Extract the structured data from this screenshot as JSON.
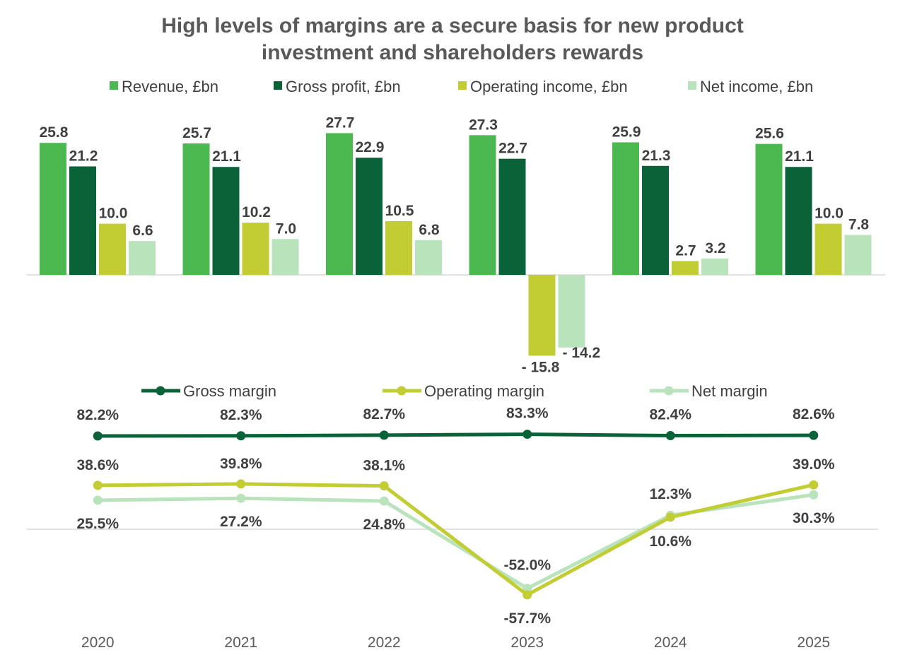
{
  "title": {
    "line1": "High levels of margins are a secure basis for new product",
    "line2": "investment and shareholders rewards"
  },
  "chart_data": [
    {
      "type": "bar",
      "categories": [
        "2020",
        "2021",
        "2022",
        "2023",
        "2024",
        "2025"
      ],
      "series": [
        {
          "name": "Revenue, £bn",
          "color": "#4cb850",
          "values": [
            25.8,
            25.7,
            27.7,
            27.3,
            25.9,
            25.6
          ],
          "labels": [
            "25.8",
            "25.7",
            "27.7",
            "27.3",
            "25.9",
            "25.6"
          ]
        },
        {
          "name": "Gross profit, £bn",
          "color": "#0a6239",
          "values": [
            21.2,
            21.1,
            22.9,
            22.7,
            21.3,
            21.1
          ],
          "labels": [
            "21.2",
            "21.1",
            "22.9",
            "22.7",
            "21.3",
            "21.1"
          ]
        },
        {
          "name": "Operating income, £bn",
          "color": "#c2cd34",
          "values": [
            10.0,
            10.2,
            10.5,
            -15.8,
            2.7,
            10.0
          ],
          "labels": [
            "10.0",
            "10.2",
            "10.5",
            "- 15.8",
            "2.7",
            "10.0"
          ]
        },
        {
          "name": "Net income, £bn",
          "color": "#b8e3bb",
          "values": [
            6.6,
            7.0,
            6.8,
            -14.2,
            3.2,
            7.8
          ],
          "labels": [
            "6.6",
            "7.0",
            "6.8",
            "- 14.2",
            "3.2",
            "7.8"
          ]
        }
      ],
      "legend": "top"
    },
    {
      "type": "line",
      "categories": [
        "2020",
        "2021",
        "2022",
        "2023",
        "2024",
        "2025"
      ],
      "series": [
        {
          "name": "Gross margin",
          "color": "#0a6239",
          "values": [
            82.2,
            82.3,
            82.7,
            83.3,
            82.4,
            82.6
          ],
          "labels": [
            "82.2%",
            "82.3%",
            "82.7%",
            "83.3%",
            "82.4%",
            "82.6%"
          ]
        },
        {
          "name": "Operating margin",
          "color": "#c2cd34",
          "values": [
            38.6,
            39.8,
            38.1,
            -57.7,
            10.6,
            39.0
          ],
          "labels": [
            "38.6%",
            "39.8%",
            "38.1%",
            "-57.7%",
            "10.6%",
            "39.0%"
          ]
        },
        {
          "name": "Net margin",
          "color": "#b8e3bb",
          "values": [
            25.5,
            27.2,
            24.8,
            -52.0,
            12.3,
            30.3
          ],
          "labels": [
            "25.5%",
            "27.2%",
            "24.8%",
            "-52.0%",
            "12.3%",
            "30.3%"
          ]
        }
      ],
      "legend": "top"
    }
  ]
}
